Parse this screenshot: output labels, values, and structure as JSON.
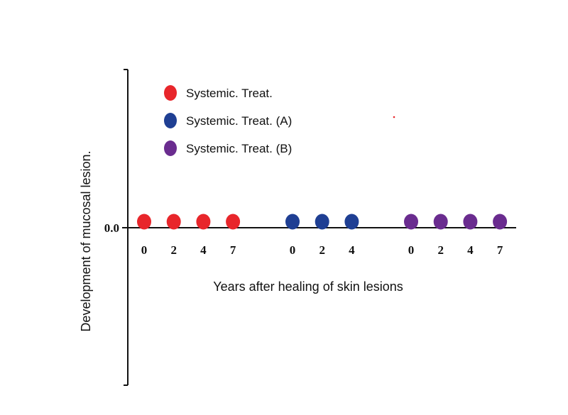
{
  "chart_data": {
    "type": "scatter",
    "title": "",
    "xlabel": "Years after healing of skin lesions",
    "ylabel": "Development of mucosal lesion.",
    "y_tick_label": "0.0",
    "ylim": [
      -1,
      1
    ],
    "grid": false,
    "legend_position": "top-left",
    "series": [
      {
        "name": "Systemic. Treat.",
        "color": "#e8262b",
        "x": [
          "0",
          "2",
          "4",
          "7"
        ],
        "y": [
          0,
          0,
          0,
          0
        ]
      },
      {
        "name": "Systemic. Treat. (A)",
        "color": "#1f3f93",
        "x": [
          "0",
          "2",
          "4"
        ],
        "y": [
          0,
          0,
          0
        ]
      },
      {
        "name": "Systemic. Treat. (B)",
        "color": "#6a2c8f",
        "x": [
          "0",
          "2",
          "4",
          "7"
        ],
        "y": [
          0,
          0,
          0,
          0
        ]
      }
    ]
  }
}
